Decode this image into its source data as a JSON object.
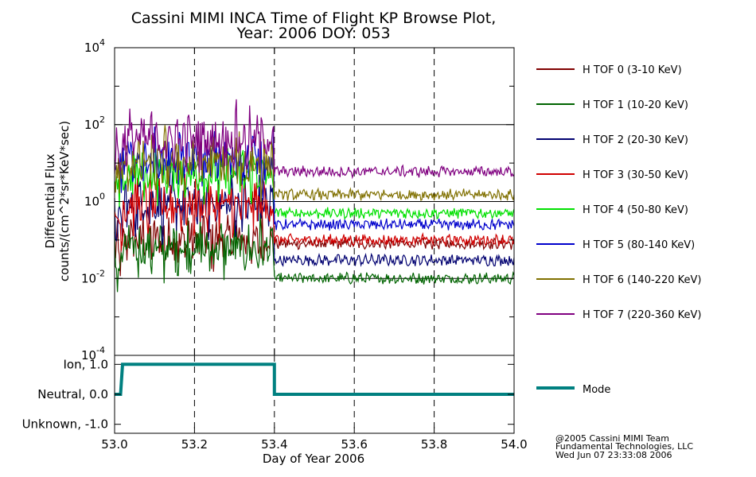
{
  "title_line1": "Cassini MIMI INCA Time of Flight KP Browse Plot,",
  "title_line2": "Year: 2006 DOY: 053",
  "credits": [
    "@2005 Cassini MIMI Team",
    "Fundamental Technologies, LLC",
    "Wed Jun 07 23:33:08 2006"
  ],
  "chart_data": [
    {
      "type": "line",
      "ylabel_line1": "Differential Flux",
      "ylabel_line2": "counts/(cm^2*sr*KeV*sec)",
      "xlabel": "",
      "yscale": "log",
      "ylim_exponents": [
        -4,
        4
      ],
      "ytick_exponents": [
        -4,
        -2,
        0,
        2,
        4
      ],
      "xlim": [
        53.0,
        54.0
      ],
      "xticks": [
        53.0,
        53.2,
        53.4,
        53.6,
        53.8,
        54.0
      ],
      "grid": "horizontal solid lines at 10^-2, 10^0, 10^2; vertical dashed lines at x ticks",
      "legend_position": "right",
      "transition_x": 53.4,
      "series": [
        {
          "name": "H TOF 0 (3-10 KeV)",
          "color": "#800000",
          "before": 0.1,
          "after": 0.08
        },
        {
          "name": "H TOF 1 (10-20 KeV)",
          "color": "#006400",
          "before": 0.06,
          "after": 0.01
        },
        {
          "name": "H TOF 2 (20-30 KeV)",
          "color": "#000070",
          "before": 0.8,
          "after": 0.03
        },
        {
          "name": "H TOF 3 (30-50 KeV)",
          "color": "#d00000",
          "before": 0.8,
          "after": 0.1
        },
        {
          "name": "H TOF 4 (50-80 KeV)",
          "color": "#00e000",
          "before": 5,
          "after": 0.5
        },
        {
          "name": "H TOF 5 (80-140 KeV)",
          "color": "#0000cc",
          "before": 12,
          "after": 0.25
        },
        {
          "name": "H TOF 6 (140-220 KeV)",
          "color": "#807000",
          "before": 10,
          "after": 1.5
        },
        {
          "name": "H TOF 7 (220-360 KeV)",
          "color": "#800080",
          "before": 40,
          "after": 6
        }
      ]
    },
    {
      "type": "line",
      "ytick_labels": [
        "Ion, 1.0",
        "Neutral, 0.0",
        "Unknown, -1.0"
      ],
      "yticks": [
        1,
        0,
        -1
      ],
      "ylim": [
        -1.3,
        1.3
      ],
      "xlim": [
        53.0,
        54.0
      ],
      "xticks": [
        53.0,
        53.2,
        53.4,
        53.6,
        53.8,
        54.0
      ],
      "xtick_labels": [
        "53.0",
        "53.2",
        "53.4",
        "53.6",
        "53.8",
        "54.0"
      ],
      "xlabel": "Day of Year 2006",
      "series": [
        {
          "name": "Mode",
          "color": "#008080",
          "x": [
            53.0,
            53.015,
            53.018,
            53.02,
            53.4,
            53.4,
            54.0
          ],
          "y": [
            0,
            0,
            0.6,
            1,
            1,
            0,
            0
          ]
        }
      ]
    }
  ]
}
